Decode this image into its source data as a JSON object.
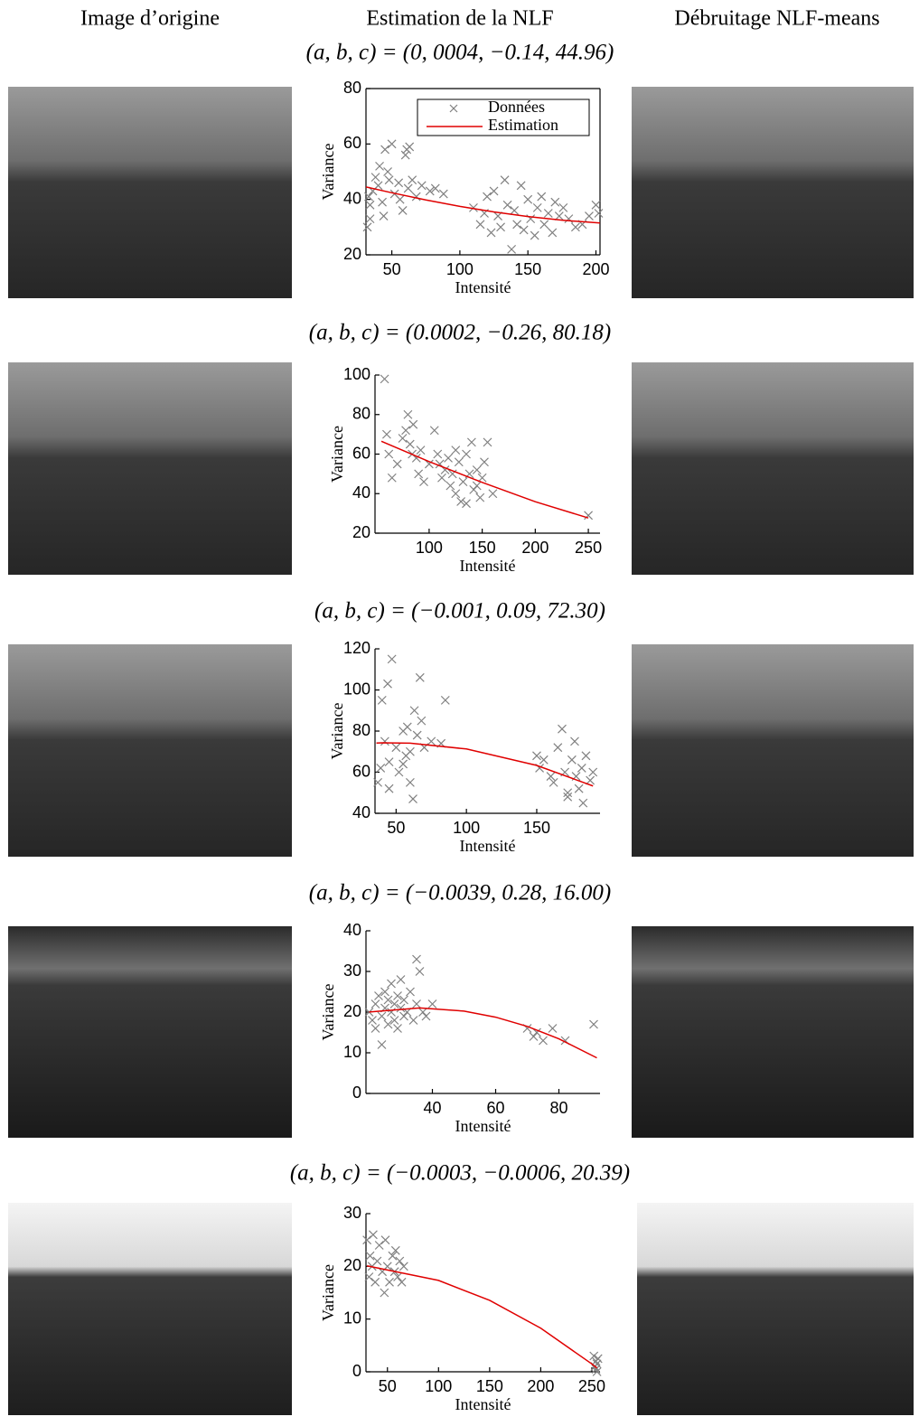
{
  "headers": [
    "Image d’origine",
    "Estimation de la NLF",
    "Débruitage NLF-means"
  ],
  "chart_data": [
    {
      "type": "scatter",
      "title": "(a, b, c) = (0, 0004, −0.14, 44.96)",
      "xlabel": "Intensité",
      "ylabel": "Variance",
      "xlim": [
        31,
        203
      ],
      "ylim": [
        20,
        80
      ],
      "xticks": [
        50,
        100,
        150,
        200
      ],
      "yticks": [
        20,
        40,
        60,
        80
      ],
      "box": true,
      "legend": "upper right",
      "series": [
        {
          "name": "Données",
          "color": "#808080",
          "kind": "markers",
          "x": [
            32,
            33,
            34,
            36,
            38,
            40,
            41,
            43,
            45,
            47,
            48,
            50,
            52,
            55,
            58,
            60,
            61,
            62,
            63,
            65,
            68,
            72,
            78,
            82,
            88,
            34,
            44,
            56,
            110,
            115,
            118,
            120,
            123,
            125,
            128,
            130,
            133,
            135,
            138,
            140,
            142,
            145,
            147,
            150,
            152,
            155,
            157,
            160,
            162,
            165,
            168,
            170,
            173,
            176,
            180,
            185,
            190,
            195,
            200,
            202
          ],
          "values": [
            30,
            41,
            38,
            43,
            48,
            45,
            52,
            39,
            58,
            50,
            47,
            60,
            42,
            46,
            36,
            56,
            58,
            44,
            59,
            47,
            41,
            45,
            43,
            44,
            42,
            33,
            34,
            40,
            37,
            31,
            35,
            41,
            28,
            43,
            34,
            30,
            47,
            38,
            22,
            36,
            31,
            45,
            29,
            40,
            33,
            27,
            37,
            41,
            31,
            35,
            28,
            39,
            34,
            37,
            33,
            30,
            31,
            34,
            38,
            35
          ]
        },
        {
          "name": "Estimation",
          "color": "#e00000",
          "kind": "line",
          "x": [
            31,
            50,
            75,
            100,
            125,
            150,
            175,
            203
          ],
          "values": [
            44.5,
            42.4,
            39.8,
            37.5,
            35.5,
            33.8,
            32.5,
            31.5
          ]
        }
      ]
    },
    {
      "type": "scatter",
      "title": "(a, b, c) = (0.0002, −0.26, 80.18)",
      "xlabel": "Intensité",
      "ylabel": "Variance",
      "xlim": [
        49,
        261
      ],
      "ylim": [
        20,
        100
      ],
      "xticks": [
        100,
        150,
        200,
        250
      ],
      "yticks": [
        20,
        40,
        60,
        80,
        100
      ],
      "box": false,
      "series": [
        {
          "color": "#808080",
          "kind": "markers",
          "x": [
            58,
            62,
            65,
            70,
            75,
            78,
            80,
            82,
            84,
            85,
            88,
            90,
            92,
            95,
            100,
            105,
            108,
            110,
            112,
            115,
            118,
            120,
            122,
            125,
            128,
            130,
            132,
            135,
            138,
            140,
            142,
            145,
            148,
            150,
            152,
            155,
            160,
            250,
            60,
            125,
            135,
            145
          ],
          "values": [
            98,
            60,
            48,
            55,
            68,
            72,
            80,
            65,
            60,
            75,
            58,
            50,
            62,
            46,
            55,
            72,
            60,
            55,
            48,
            52,
            58,
            44,
            50,
            40,
            56,
            36,
            46,
            60,
            50,
            66,
            42,
            52,
            38,
            48,
            56,
            66,
            40,
            29,
            70,
            62,
            35,
            44
          ]
        },
        {
          "color": "#e00000",
          "kind": "line",
          "x": [
            55,
            100,
            150,
            200,
            250
          ],
          "values": [
            66.5,
            56.2,
            45.7,
            35.9,
            27.7
          ]
        }
      ]
    },
    {
      "type": "scatter",
      "title": "(a, b, c) = (−0.001, 0.09, 72.30)",
      "xlabel": "Intensité",
      "ylabel": "Variance",
      "xlim": [
        35,
        195
      ],
      "ylim": [
        40,
        120
      ],
      "xticks": [
        50,
        100,
        150
      ],
      "yticks": [
        40,
        60,
        80,
        100,
        120
      ],
      "box": false,
      "series": [
        {
          "color": "#808080",
          "kind": "markers",
          "x": [
            37,
            39,
            40,
            42,
            44,
            45,
            47,
            50,
            52,
            55,
            57,
            58,
            60,
            62,
            63,
            65,
            67,
            68,
            70,
            75,
            82,
            85,
            150,
            152,
            155,
            160,
            162,
            165,
            168,
            170,
            172,
            175,
            177,
            178,
            180,
            182,
            185,
            188,
            190,
            45,
            55,
            60,
            172,
            183
          ],
          "values": [
            55,
            62,
            95,
            75,
            103,
            65,
            115,
            72,
            60,
            80,
            68,
            82,
            55,
            47,
            90,
            78,
            106,
            85,
            72,
            75,
            74,
            95,
            68,
            62,
            66,
            58,
            55,
            72,
            81,
            60,
            50,
            66,
            75,
            58,
            52,
            62,
            68,
            56,
            60,
            52,
            64,
            70,
            48,
            45
          ]
        },
        {
          "color": "#e00000",
          "kind": "line",
          "x": [
            36,
            40,
            60,
            100,
            150,
            190
          ],
          "values": [
            74.2,
            74.3,
            74.1,
            71.3,
            63.3,
            53.3
          ]
        }
      ]
    },
    {
      "type": "scatter",
      "title": "(a, b, c) = (−0.0039, 0.28, 16.00)",
      "xlabel": "Intensité",
      "ylabel": "Variance",
      "xlim": [
        19,
        93
      ],
      "ylim": [
        0,
        40
      ],
      "xticks": [
        40,
        60,
        80
      ],
      "yticks": [
        0,
        10,
        20,
        30,
        40
      ],
      "box": false,
      "series": [
        {
          "color": "#808080",
          "kind": "markers",
          "x": [
            20,
            21,
            22,
            22,
            23,
            24,
            24,
            25,
            25,
            26,
            26,
            27,
            27,
            28,
            28,
            29,
            29,
            30,
            30,
            31,
            31,
            32,
            33,
            34,
            35,
            35,
            36,
            37,
            38,
            40,
            70,
            72,
            73,
            75,
            78,
            82,
            91
          ],
          "values": [
            20,
            18,
            22,
            16,
            24,
            19,
            12,
            25,
            21,
            17,
            23,
            20,
            27,
            18,
            22,
            24,
            16,
            21,
            28,
            19,
            23,
            20,
            25,
            18,
            22,
            33,
            30,
            20,
            19,
            22,
            16,
            14,
            15,
            13,
            16,
            13,
            17
          ]
        },
        {
          "color": "#e00000",
          "kind": "line",
          "x": [
            20,
            36,
            50,
            60,
            70,
            80,
            92
          ],
          "values": [
            20.04,
            21.03,
            20.25,
            18.76,
            16.49,
            13.44,
            8.75
          ]
        }
      ]
    },
    {
      "type": "scatter",
      "title": "(a, b, c) = (−0.0003, −0.0006, 20.39)",
      "xlabel": "Intensité",
      "ylabel": "Variance",
      "xlim": [
        29,
        258
      ],
      "ylim": [
        0,
        30
      ],
      "xticks": [
        50,
        100,
        150,
        200,
        250
      ],
      "yticks": [
        0,
        10,
        20,
        30
      ],
      "box": false,
      "series": [
        {
          "color": "#808080",
          "kind": "markers",
          "x": [
            30,
            32,
            33,
            35,
            36,
            38,
            40,
            42,
            45,
            47,
            48,
            50,
            52,
            55,
            57,
            58,
            60,
            62,
            64,
            66,
            252,
            253,
            254,
            254,
            255,
            255,
            256
          ],
          "values": [
            25,
            18,
            22,
            20,
            26,
            17,
            21,
            24,
            19,
            15,
            25,
            20,
            17,
            22,
            19,
            23,
            18,
            21,
            17,
            20,
            3,
            1,
            2,
            0.5,
            1.5,
            0,
            2.5
          ]
        },
        {
          "color": "#e00000",
          "kind": "line",
          "x": [
            30,
            100,
            150,
            200,
            250,
            255
          ],
          "values": [
            20.1,
            17.33,
            13.55,
            8.27,
            1.49,
            0.73
          ]
        }
      ]
    }
  ]
}
